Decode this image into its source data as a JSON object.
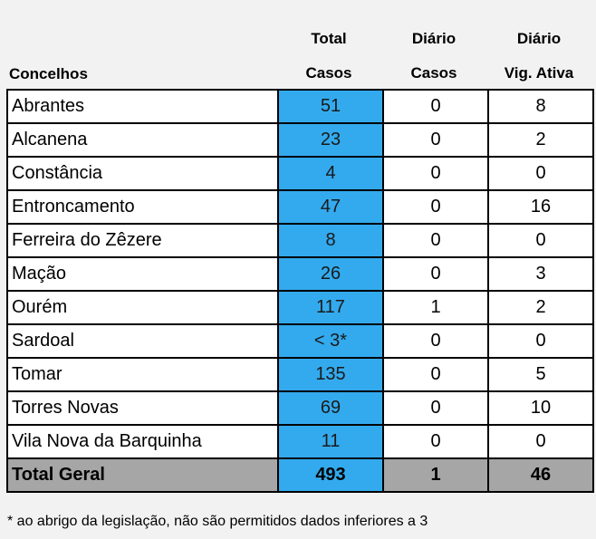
{
  "headers": {
    "concelhos": "Concelhos",
    "total_line1": "Total",
    "total_line2": "Casos",
    "diario_casos_line1": "Diário",
    "diario_casos_line2": "Casos",
    "diario_vig_line1": "Diário",
    "diario_vig_line2": "Vig. Ativa"
  },
  "rows": [
    {
      "name": "Abrantes",
      "total": "51",
      "diario": "0",
      "vig": "8"
    },
    {
      "name": "Alcanena",
      "total": "23",
      "diario": "0",
      "vig": "2"
    },
    {
      "name": "Constância",
      "total": "4",
      "diario": "0",
      "vig": "0"
    },
    {
      "name": "Entroncamento",
      "total": "47",
      "diario": "0",
      "vig": "16"
    },
    {
      "name": "Ferreira do Zêzere",
      "total": "8",
      "diario": "0",
      "vig": "0"
    },
    {
      "name": "Mação",
      "total": "26",
      "diario": "0",
      "vig": "3"
    },
    {
      "name": "Ourém",
      "total": "117",
      "diario": "1",
      "vig": "2"
    },
    {
      "name": "Sardoal",
      "total": "< 3*",
      "diario": "0",
      "vig": "0"
    },
    {
      "name": "Tomar",
      "total": "135",
      "diario": "0",
      "vig": "5"
    },
    {
      "name": "Torres Novas",
      "total": "69",
      "diario": "0",
      "vig": "10"
    },
    {
      "name": "Vila Nova da Barquinha",
      "total": "11",
      "diario": "0",
      "vig": "0"
    }
  ],
  "totals": {
    "name": "Total Geral",
    "total": "493",
    "diario": "1",
    "vig": "46"
  },
  "footnote": "* ao abrigo da legislação, não são permitidos dados inferiores a 3",
  "colors": {
    "total_column": "#33aaee",
    "total_row": "#a6a6a6",
    "background": "#f2f2f2"
  }
}
